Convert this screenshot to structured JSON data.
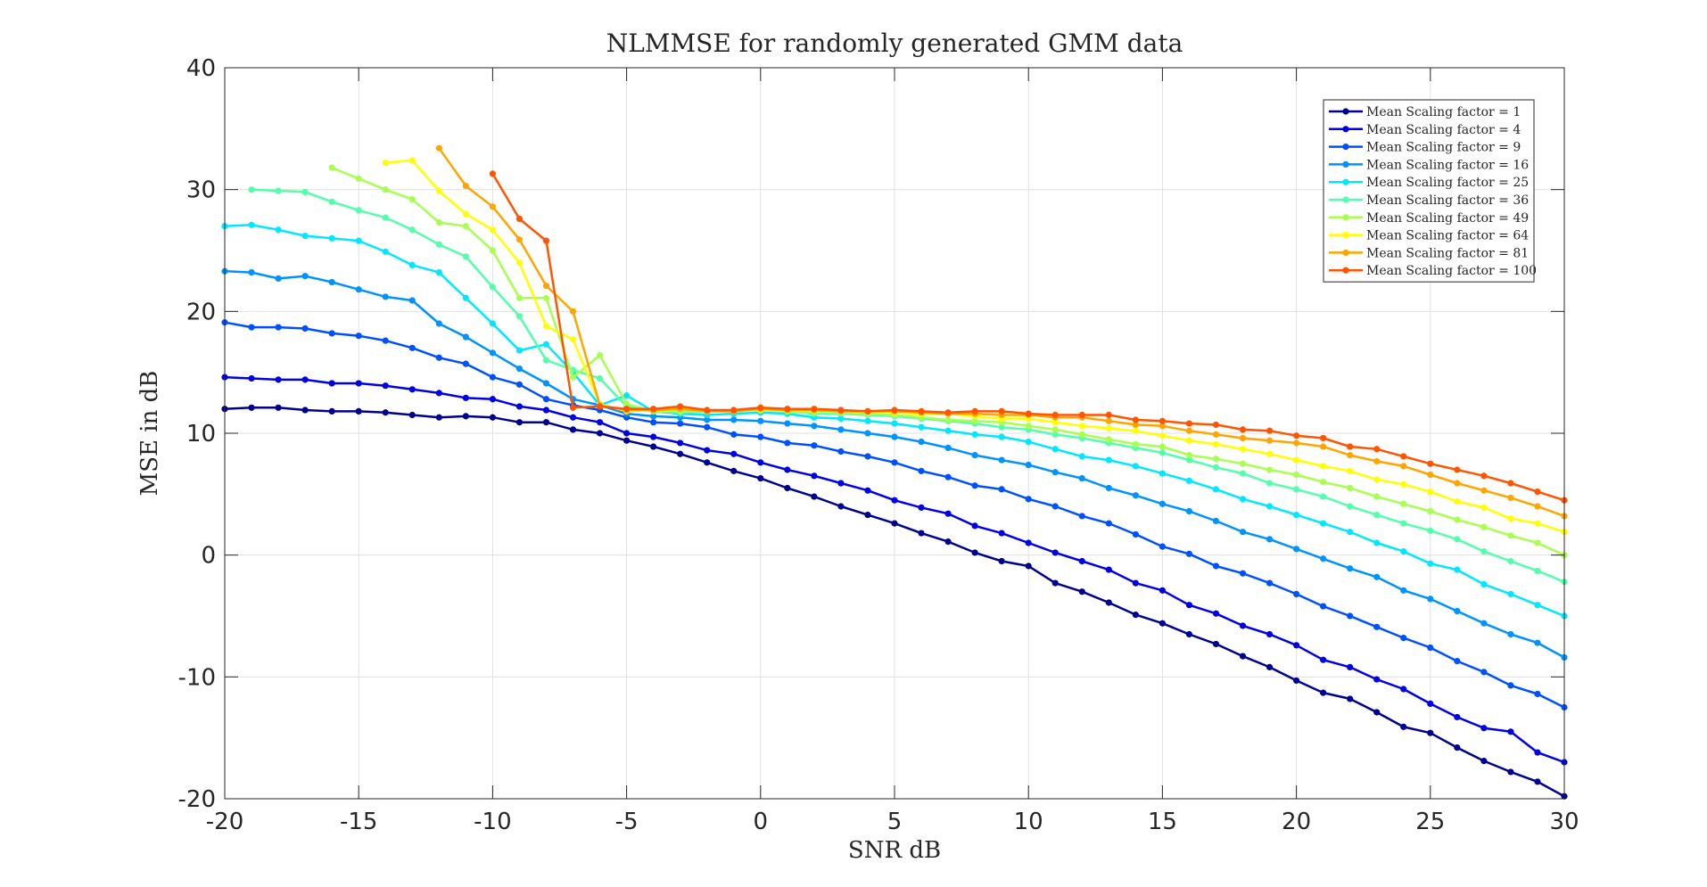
{
  "chart_data": {
    "type": "line",
    "title": "NLMMSE for randomly generated GMM data",
    "xlabel": "SNR dB",
    "ylabel": "MSE in dB",
    "xlim": [
      -20,
      30
    ],
    "ylim": [
      -20,
      40
    ],
    "xticks": [
      -20,
      -15,
      -10,
      -5,
      0,
      5,
      10,
      15,
      20,
      25,
      30
    ],
    "yticks": [
      -20,
      -10,
      0,
      10,
      20,
      30,
      40
    ],
    "xtick_labels": [
      "-20",
      "-15",
      "-10",
      "-5",
      "0",
      "5",
      "10",
      "15",
      "20",
      "25",
      "30"
    ],
    "ytick_labels": [
      "-20",
      "-10",
      "0",
      "10",
      "20",
      "30",
      "40"
    ],
    "grid": true,
    "legend_position": "top-right",
    "marker": "dot",
    "series": [
      {
        "name": "Mean Scaling factor = 1",
        "color": "#00008f",
        "x": [
          -20,
          -19,
          -18,
          -17,
          -16,
          -15,
          -14,
          -13,
          -12,
          -11,
          -10,
          -9,
          -8,
          -7,
          -6,
          -5,
          -4,
          -3,
          -2,
          -1,
          0,
          1,
          2,
          3,
          4,
          5,
          6,
          7,
          8,
          9,
          10,
          11,
          12,
          13,
          14,
          15,
          16,
          17,
          18,
          19,
          20,
          21,
          22,
          23,
          24,
          25,
          26,
          27,
          28,
          29,
          30
        ],
        "y": [
          12.0,
          12.1,
          12.1,
          11.9,
          11.8,
          11.8,
          11.7,
          11.5,
          11.3,
          11.4,
          11.3,
          10.9,
          10.9,
          10.3,
          10.0,
          9.4,
          8.9,
          8.3,
          7.6,
          6.9,
          6.3,
          5.5,
          4.8,
          4.0,
          3.3,
          2.6,
          1.8,
          1.1,
          0.2,
          -0.5,
          -0.9,
          -2.3,
          -3.0,
          -3.9,
          -4.9,
          -5.6,
          -6.5,
          -7.3,
          -8.3,
          -9.2,
          -10.3,
          -11.3,
          -11.8,
          -12.9,
          -14.1,
          -14.6,
          -15.8,
          -16.9,
          -17.8,
          -18.6,
          -19.8
        ]
      },
      {
        "name": "Mean Scaling factor = 4",
        "color": "#0000e6",
        "x": [
          -20,
          -19,
          -18,
          -17,
          -16,
          -15,
          -14,
          -13,
          -12,
          -11,
          -10,
          -9,
          -8,
          -7,
          -6,
          -5,
          -4,
          -3,
          -2,
          -1,
          0,
          1,
          2,
          3,
          4,
          5,
          6,
          7,
          8,
          9,
          10,
          11,
          12,
          13,
          14,
          15,
          16,
          17,
          18,
          19,
          20,
          21,
          22,
          23,
          24,
          25,
          26,
          27,
          28,
          29,
          30
        ],
        "y": [
          14.6,
          14.5,
          14.4,
          14.4,
          14.1,
          14.1,
          13.9,
          13.6,
          13.3,
          12.9,
          12.8,
          12.2,
          11.9,
          11.3,
          10.9,
          10.0,
          9.7,
          9.2,
          8.6,
          8.3,
          7.6,
          7.0,
          6.5,
          5.9,
          5.3,
          4.5,
          3.9,
          3.4,
          2.4,
          1.8,
          1.0,
          0.2,
          -0.5,
          -1.2,
          -2.3,
          -2.9,
          -4.1,
          -4.8,
          -5.8,
          -6.5,
          -7.4,
          -8.6,
          -9.2,
          -10.2,
          -11.0,
          -12.2,
          -13.3,
          -14.2,
          -14.5,
          -16.2,
          -17.0
        ]
      },
      {
        "name": "Mean Scaling factor = 9",
        "color": "#0050ff",
        "x": [
          -20,
          -19,
          -18,
          -17,
          -16,
          -15,
          -14,
          -13,
          -12,
          -11,
          -10,
          -9,
          -8,
          -7,
          -6,
          -5,
          -4,
          -3,
          -2,
          -1,
          0,
          1,
          2,
          3,
          4,
          5,
          6,
          7,
          8,
          9,
          10,
          11,
          12,
          13,
          14,
          15,
          16,
          17,
          18,
          19,
          20,
          21,
          22,
          23,
          24,
          25,
          26,
          27,
          28,
          29,
          30
        ],
        "y": [
          19.1,
          18.7,
          18.7,
          18.6,
          18.2,
          18.0,
          17.6,
          17.0,
          16.2,
          15.7,
          14.6,
          14.0,
          12.8,
          12.3,
          11.9,
          11.3,
          10.9,
          10.8,
          10.5,
          9.9,
          9.7,
          9.2,
          9.0,
          8.5,
          8.1,
          7.6,
          6.9,
          6.4,
          5.7,
          5.4,
          4.6,
          4.0,
          3.2,
          2.6,
          1.7,
          0.7,
          0.1,
          -0.9,
          -1.5,
          -2.3,
          -3.2,
          -4.2,
          -5.0,
          -5.9,
          -6.8,
          -7.6,
          -8.7,
          -9.6,
          -10.7,
          -11.4,
          -12.5
        ]
      },
      {
        "name": "Mean Scaling factor = 16",
        "color": "#0093ff",
        "x": [
          -20,
          -19,
          -18,
          -17,
          -16,
          -15,
          -14,
          -13,
          -12,
          -11,
          -10,
          -9,
          -8,
          -7,
          -6,
          -5,
          -4,
          -3,
          -2,
          -1,
          0,
          1,
          2,
          3,
          4,
          5,
          6,
          7,
          8,
          9,
          10,
          11,
          12,
          13,
          14,
          15,
          16,
          17,
          18,
          19,
          20,
          21,
          22,
          23,
          24,
          25,
          26,
          27,
          28,
          29,
          30
        ],
        "y": [
          23.3,
          23.2,
          22.7,
          22.9,
          22.4,
          21.8,
          21.2,
          20.9,
          19.0,
          17.9,
          16.6,
          15.3,
          14.1,
          12.8,
          12.3,
          11.6,
          11.4,
          11.3,
          11.1,
          11.1,
          11.0,
          10.8,
          10.6,
          10.3,
          10.0,
          9.7,
          9.3,
          8.8,
          8.2,
          7.8,
          7.4,
          6.8,
          6.3,
          5.5,
          4.9,
          4.2,
          3.6,
          2.8,
          1.9,
          1.3,
          0.5,
          -0.3,
          -1.1,
          -1.8,
          -2.9,
          -3.6,
          -4.6,
          -5.6,
          -6.5,
          -7.2,
          -8.4
        ]
      },
      {
        "name": "Mean Scaling factor = 25",
        "color": "#00e8ff",
        "x": [
          -20,
          -19,
          -18,
          -17,
          -16,
          -15,
          -14,
          -13,
          -12,
          -11,
          -10,
          -9,
          -8,
          -7,
          -6,
          -5,
          -4,
          -3,
          -2,
          -1,
          0,
          1,
          2,
          3,
          4,
          5,
          6,
          7,
          8,
          9,
          10,
          11,
          12,
          13,
          14,
          15,
          16,
          17,
          18,
          19,
          20,
          21,
          22,
          23,
          24,
          25,
          26,
          27,
          28,
          29,
          30
        ],
        "y": [
          27.0,
          27.1,
          26.7,
          26.2,
          26.0,
          25.8,
          24.9,
          23.8,
          23.2,
          21.1,
          19.0,
          16.8,
          17.3,
          15.0,
          12.3,
          13.1,
          11.8,
          11.6,
          11.5,
          11.6,
          11.7,
          11.6,
          11.3,
          11.2,
          11.0,
          10.8,
          10.5,
          10.2,
          9.9,
          9.7,
          9.3,
          8.7,
          8.1,
          7.8,
          7.3,
          6.7,
          6.1,
          5.4,
          4.6,
          4.0,
          3.3,
          2.6,
          1.9,
          1.0,
          0.3,
          -0.7,
          -1.2,
          -2.4,
          -3.2,
          -4.1,
          -5.0
        ]
      },
      {
        "name": "Mean Scaling factor = 36",
        "color": "#53ffab",
        "x": [
          -19,
          -18,
          -17,
          -16,
          -15,
          -14,
          -13,
          -12,
          -11,
          -10,
          -9,
          -8,
          -7,
          -6,
          -5,
          -4,
          -3,
          -2,
          -1,
          0,
          1,
          2,
          3,
          4,
          5,
          6,
          7,
          8,
          9,
          10,
          11,
          12,
          13,
          14,
          15,
          16,
          17,
          18,
          19,
          20,
          21,
          22,
          23,
          24,
          25,
          26,
          27,
          28,
          29,
          30
        ],
        "y": [
          30.0,
          29.9,
          29.8,
          29.0,
          28.3,
          27.7,
          26.7,
          25.5,
          24.5,
          22.0,
          19.6,
          16.0,
          15.2,
          14.5,
          12.2,
          11.8,
          11.7,
          11.8,
          11.8,
          11.9,
          11.8,
          11.6,
          11.6,
          11.5,
          11.4,
          11.2,
          11.0,
          10.8,
          10.5,
          10.3,
          9.9,
          9.6,
          9.2,
          8.8,
          8.4,
          7.8,
          7.2,
          6.7,
          5.9,
          5.4,
          4.8,
          4.0,
          3.3,
          2.6,
          2.0,
          1.3,
          0.3,
          -0.5,
          -1.3,
          -2.2
        ]
      },
      {
        "name": "Mean Scaling factor = 49",
        "color": "#a8ff4f",
        "x": [
          -16,
          -15,
          -14,
          -13,
          -12,
          -11,
          -10,
          -9,
          -8,
          -7,
          -6,
          -5,
          -4,
          -3,
          -2,
          -1,
          0,
          1,
          2,
          3,
          4,
          5,
          6,
          7,
          8,
          9,
          10,
          11,
          12,
          13,
          14,
          15,
          16,
          17,
          18,
          19,
          20,
          21,
          22,
          23,
          24,
          25,
          26,
          27,
          28,
          29,
          30
        ],
        "y": [
          31.8,
          30.9,
          30.0,
          29.2,
          27.3,
          27.0,
          25.0,
          21.1,
          21.1,
          14.6,
          16.4,
          12.4,
          11.8,
          11.8,
          11.8,
          11.9,
          11.9,
          11.8,
          11.7,
          11.7,
          11.6,
          11.5,
          11.3,
          11.1,
          11.0,
          10.9,
          10.6,
          10.3,
          9.9,
          9.5,
          9.1,
          8.9,
          8.2,
          7.9,
          7.5,
          7.0,
          6.6,
          6.0,
          5.5,
          4.8,
          4.2,
          3.6,
          2.9,
          2.3,
          1.6,
          1.0,
          0.0
        ]
      },
      {
        "name": "Mean Scaling factor = 64",
        "color": "#ffff00",
        "x": [
          -14,
          -13,
          -12,
          -11,
          -10,
          -9,
          -8,
          -7,
          -6,
          -5,
          -4,
          -3,
          -2,
          -1,
          0,
          1,
          2,
          3,
          4,
          5,
          6,
          7,
          8,
          9,
          10,
          11,
          12,
          13,
          14,
          15,
          16,
          17,
          18,
          19,
          20,
          21,
          22,
          23,
          24,
          25,
          26,
          27,
          28,
          29,
          30
        ],
        "y": [
          32.2,
          32.4,
          29.9,
          28.0,
          26.7,
          24.0,
          18.8,
          17.7,
          12.4,
          11.8,
          11.9,
          12.0,
          11.9,
          11.8,
          11.9,
          11.9,
          11.9,
          11.8,
          11.8,
          11.7,
          11.6,
          11.6,
          11.4,
          11.2,
          11.2,
          10.9,
          10.6,
          10.4,
          10.2,
          9.8,
          9.4,
          9.1,
          8.7,
          8.3,
          7.8,
          7.3,
          6.9,
          6.2,
          5.8,
          5.2,
          4.4,
          3.9,
          3.0,
          2.6,
          1.9
        ]
      },
      {
        "name": "Mean Scaling factor = 81",
        "color": "#ffa500",
        "x": [
          -12,
          -11,
          -10,
          -9,
          -8,
          -7,
          -6,
          -5,
          -4,
          -3,
          -2,
          -1,
          0,
          1,
          2,
          3,
          4,
          5,
          6,
          7,
          8,
          9,
          10,
          11,
          12,
          13,
          14,
          15,
          16,
          17,
          18,
          19,
          20,
          21,
          22,
          23,
          24,
          25,
          26,
          27,
          28,
          29,
          30
        ],
        "y": [
          33.4,
          30.3,
          28.6,
          25.9,
          22.1,
          20.0,
          12.3,
          11.9,
          11.9,
          12.0,
          11.8,
          11.8,
          12.0,
          11.9,
          11.9,
          11.8,
          11.8,
          11.8,
          11.7,
          11.6,
          11.6,
          11.5,
          11.5,
          11.3,
          11.3,
          11.0,
          10.7,
          10.6,
          10.2,
          9.9,
          9.6,
          9.4,
          9.2,
          8.9,
          8.2,
          7.7,
          7.3,
          6.6,
          5.9,
          5.3,
          4.7,
          4.0,
          3.2
        ]
      },
      {
        "name": "Mean Scaling factor = 100",
        "color": "#ff5500",
        "x": [
          -10,
          -9,
          -8,
          -7,
          -6,
          -5,
          -4,
          -3,
          -2,
          -1,
          0,
          1,
          2,
          3,
          4,
          5,
          6,
          7,
          8,
          9,
          10,
          11,
          12,
          13,
          14,
          15,
          16,
          17,
          18,
          19,
          20,
          21,
          22,
          23,
          24,
          25,
          26,
          27,
          28,
          29,
          30
        ],
        "y": [
          31.3,
          27.6,
          25.8,
          12.1,
          12.2,
          12.0,
          12.0,
          12.2,
          11.9,
          11.9,
          12.1,
          12.0,
          12.0,
          11.9,
          11.8,
          11.9,
          11.8,
          11.7,
          11.8,
          11.8,
          11.6,
          11.5,
          11.5,
          11.5,
          11.1,
          11.0,
          10.8,
          10.7,
          10.3,
          10.2,
          9.8,
          9.6,
          8.9,
          8.7,
          8.1,
          7.5,
          7.0,
          6.5,
          5.9,
          5.2,
          4.5
        ]
      }
    ]
  }
}
